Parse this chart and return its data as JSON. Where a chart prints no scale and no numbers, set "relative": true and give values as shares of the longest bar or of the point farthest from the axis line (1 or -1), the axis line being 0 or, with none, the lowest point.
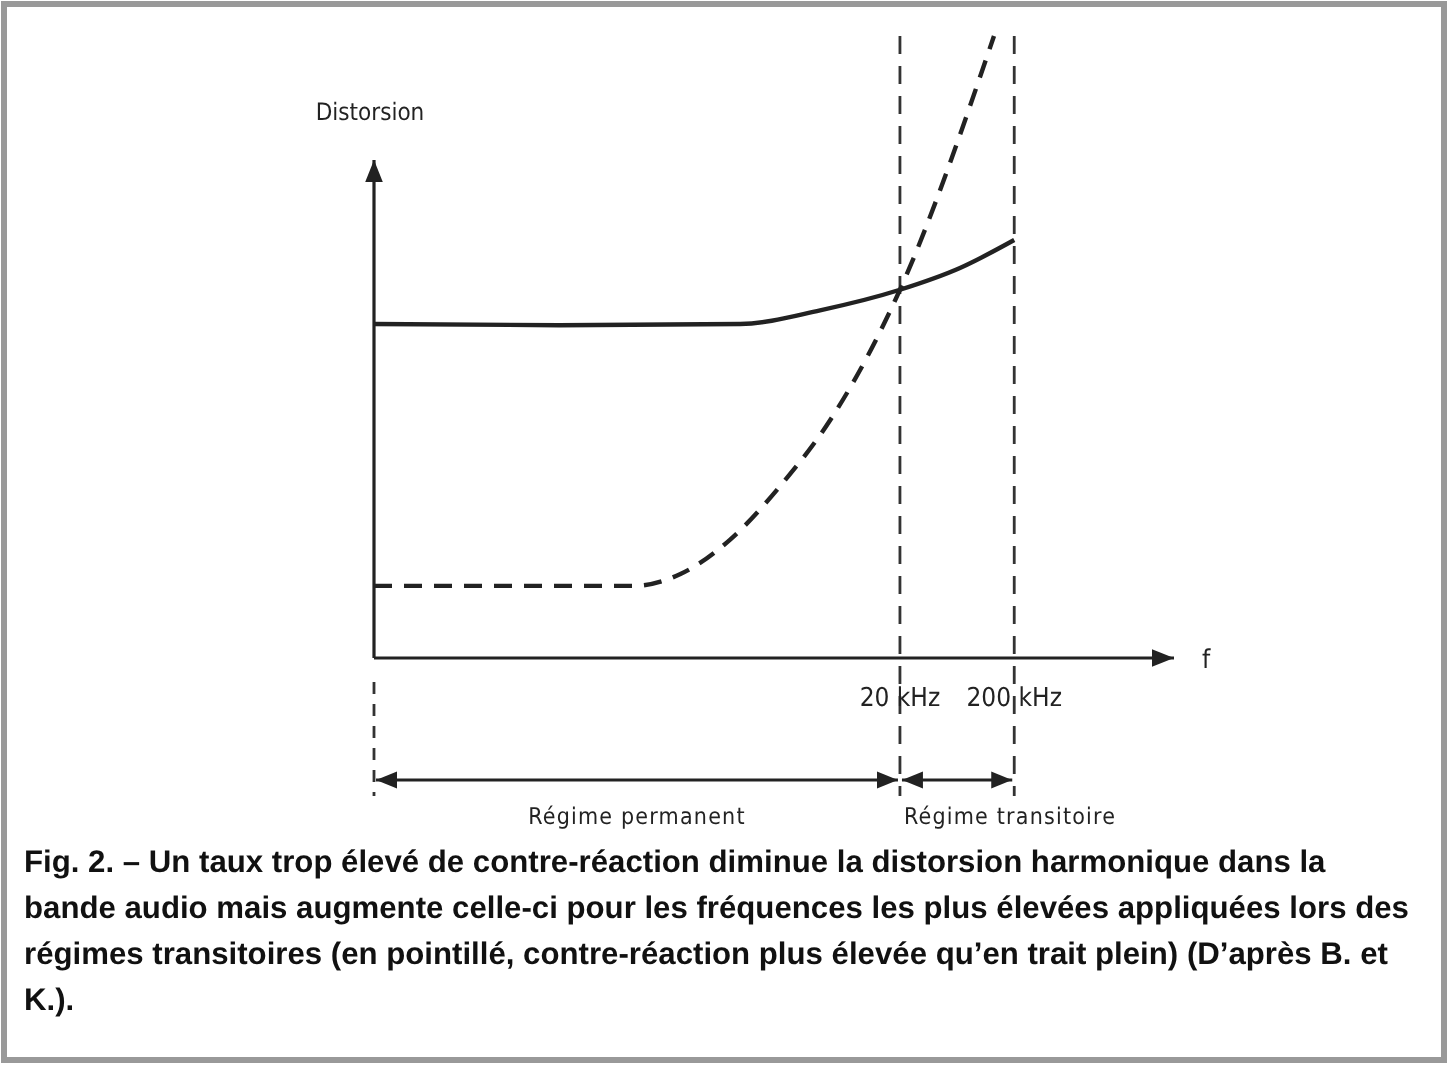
{
  "chart_data": {
    "type": "line",
    "relative": true,
    "log": "x",
    "xlabel": "f",
    "ylabel": "Distorsion",
    "xlim": [
      0.0005,
      5000
    ],
    "xticks": [
      {
        "value": 20,
        "label": "20 kHz"
      },
      {
        "value": 200,
        "label": "200 kHz"
      }
    ],
    "series": [
      {
        "color": "#222222",
        "line_style": "solid",
        "x": [
          0.0005,
          0.021,
          0.8,
          4,
          20,
          67,
          200
        ],
        "values": [
          0.537,
          0.535,
          0.537,
          0.559,
          0.592,
          0.627,
          0.672
        ]
      },
      {
        "color": "#222222",
        "line_style": "dashed",
        "x": [
          0.0005,
          0.094,
          0.24,
          0.65,
          1.8,
          5.3,
          20,
          133
        ],
        "values": [
          0.116,
          0.116,
          0.135,
          0.19,
          0.277,
          0.392,
          0.592,
          1
        ]
      }
    ],
    "ref_lines": [
      {
        "axis": "x",
        "value": 20,
        "line_style": "dashed"
      },
      {
        "axis": "x",
        "value": 200,
        "line_style": "dashed"
      }
    ],
    "annotations": [
      "Régime permanent",
      "Régime transitoire",
      "Fig. 2. – Un taux trop élevé de contre-réaction diminue la distorsion harmonique dans la bande audio mais augmente celle-ci pour les fréquences les plus élevées appliquées lors des régimes transitoires (en pointillé, contre-réaction plus élevée qu’en trait plein) (D’après B. et K.)."
    ]
  }
}
